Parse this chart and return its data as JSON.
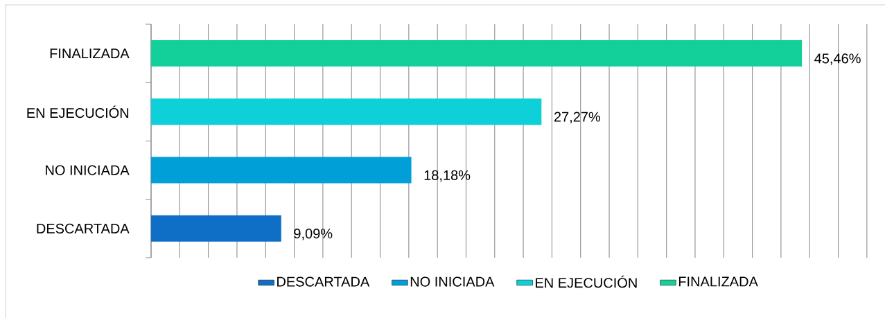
{
  "chart_data": {
    "type": "bar",
    "orientation": "horizontal",
    "categories": [
      "FINALIZADA",
      "EN EJECUCIÓN",
      "NO INICIADA",
      "DESCARTADA"
    ],
    "series": [
      {
        "name": "DESCARTADA",
        "color": "#0f6fc6",
        "values": [
          null,
          null,
          null,
          9.09
        ],
        "value_labels": [
          null,
          null,
          null,
          "9,09%"
        ]
      },
      {
        "name": "NO INICIADA",
        "color": "#009fd8",
        "values": [
          null,
          null,
          18.18,
          null
        ],
        "value_labels": [
          null,
          null,
          "18,18%",
          null
        ]
      },
      {
        "name": "EN EJECUCIÓN",
        "color": "#0dd0d8",
        "values": [
          null,
          27.27,
          null,
          null
        ],
        "value_labels": [
          null,
          "27,27%",
          null,
          null
        ]
      },
      {
        "name": "FINALIZADA",
        "color": "#13cf99",
        "values": [
          45.46,
          null,
          null,
          null
        ],
        "value_labels": [
          "45,46%",
          null,
          null,
          null
        ]
      }
    ],
    "tick_labels": "y",
    "grid": "x",
    "legend": "bottom"
  }
}
